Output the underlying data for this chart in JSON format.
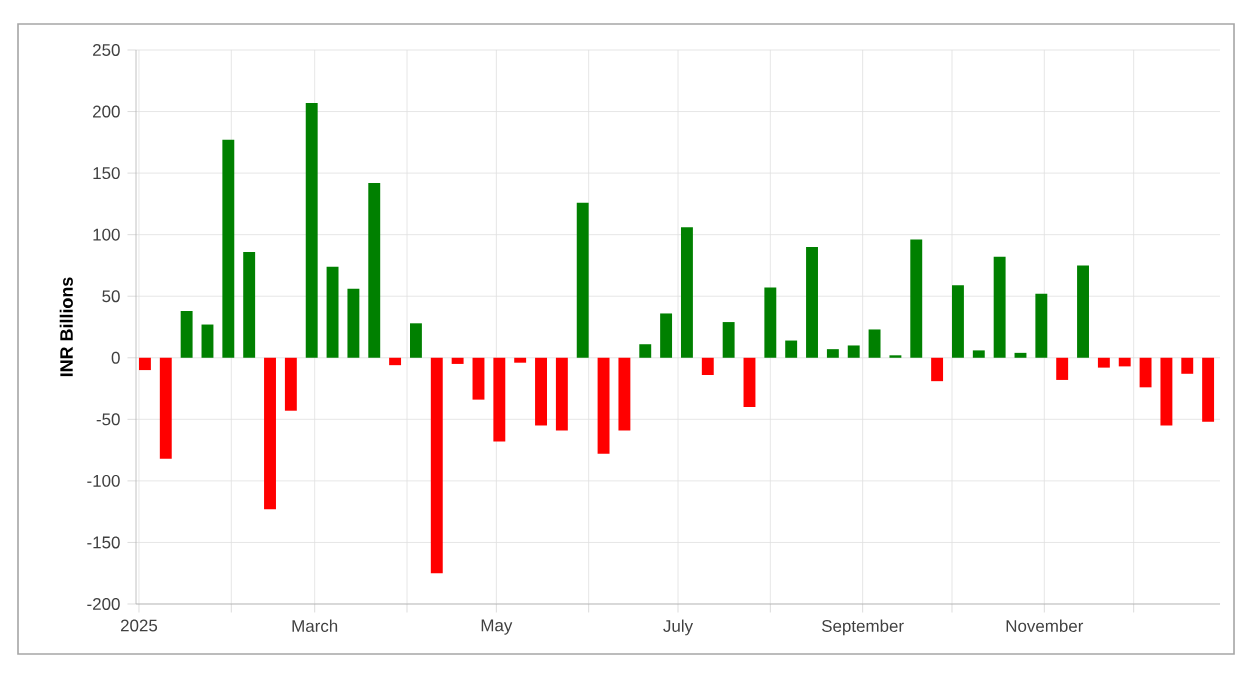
{
  "chart_data": {
    "type": "bar",
    "ylabel": "INR Billions",
    "x": [
      "2025-01-03",
      "2025-01-10",
      "2025-01-17",
      "2025-01-24",
      "2025-01-31",
      "2025-02-07",
      "2025-02-14",
      "2025-02-21",
      "2025-02-28",
      "2025-03-07",
      "2025-03-14",
      "2025-03-21",
      "2025-03-28",
      "2025-04-04",
      "2025-04-11",
      "2025-04-18",
      "2025-04-25",
      "2025-05-02",
      "2025-05-09",
      "2025-05-16",
      "2025-05-23",
      "2025-05-30",
      "2025-06-06",
      "2025-06-13",
      "2025-06-20",
      "2025-06-27",
      "2025-07-04",
      "2025-07-11",
      "2025-07-18",
      "2025-07-25",
      "2025-08-01",
      "2025-08-08",
      "2025-08-15",
      "2025-08-22",
      "2025-08-29",
      "2025-09-05",
      "2025-09-12",
      "2025-09-19",
      "2025-09-26",
      "2025-10-03",
      "2025-10-10",
      "2025-10-17",
      "2025-10-24",
      "2025-10-31",
      "2025-11-07",
      "2025-11-14",
      "2025-11-21",
      "2025-11-28",
      "2025-12-05",
      "2025-12-12",
      "2025-12-19",
      "2025-12-26"
    ],
    "values": [
      -10,
      -82,
      38,
      27,
      177,
      86,
      -123,
      -43,
      207,
      74,
      56,
      142,
      -6,
      28,
      -175,
      -5,
      -34,
      -68,
      -4,
      -55,
      -59,
      126,
      -78,
      -59,
      11,
      36,
      106,
      -14,
      29,
      -40,
      57,
      14,
      90,
      7,
      10,
      23,
      2,
      96,
      -19,
      59,
      6,
      82,
      4,
      52,
      -18,
      75,
      -8,
      -7,
      -24,
      -55,
      -13,
      -52
    ],
    "colors": [
      "#ff0000",
      "#ff0000",
      "#008000",
      "#008000",
      "#008000",
      "#008000",
      "#ff0000",
      "#ff0000",
      "#008000",
      "#008000",
      "#008000",
      "#008000",
      "#ff0000",
      "#008000",
      "#ff0000",
      "#ff0000",
      "#ff0000",
      "#ff0000",
      "#ff0000",
      "#ff0000",
      "#ff0000",
      "#008000",
      "#ff0000",
      "#ff0000",
      "#008000",
      "#008000",
      "#008000",
      "#ff0000",
      "#008000",
      "#ff0000",
      "#008000",
      "#008000",
      "#008000",
      "#008000",
      "#008000",
      "#008000",
      "#008000",
      "#008000",
      "#ff0000",
      "#008000",
      "#008000",
      "#008000",
      "#008000",
      "#008000",
      "#ff0000",
      "#008000",
      "#ff0000",
      "#ff0000",
      "#ff0000",
      "#ff0000",
      "#ff0000",
      "#ff0000"
    ],
    "xlim": [
      "2024-12-31",
      "2025-12-30"
    ],
    "xticks": [
      {
        "value": "2025-01-01",
        "label": "2025"
      },
      {
        "value": "2025-02-01",
        "label": null
      },
      {
        "value": "2025-03-01",
        "label": "March"
      },
      {
        "value": "2025-04-01",
        "label": null
      },
      {
        "value": "2025-05-01",
        "label": "May"
      },
      {
        "value": "2025-06-01",
        "label": null
      },
      {
        "value": "2025-07-01",
        "label": "July"
      },
      {
        "value": "2025-08-01",
        "label": null
      },
      {
        "value": "2025-09-01",
        "label": "September"
      },
      {
        "value": "2025-10-01",
        "label": null
      },
      {
        "value": "2025-11-01",
        "label": "November"
      },
      {
        "value": "2025-12-01",
        "label": null
      }
    ],
    "ylim": [
      -200,
      250
    ],
    "yticks": [
      -200,
      -150,
      -100,
      -50,
      0,
      50,
      100,
      150,
      200,
      250
    ],
    "grid": true
  }
}
